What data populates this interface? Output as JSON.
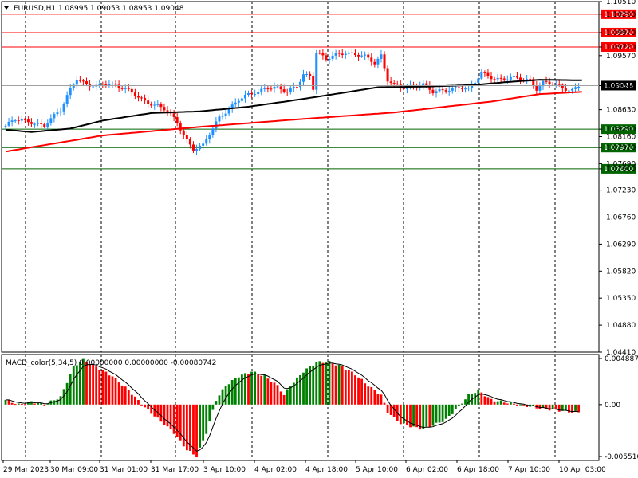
{
  "header": {
    "symbol_line": "EURUSD,H1  1.08995 1.09053 1.08953 1.09048",
    "indicator_line": "MACD_color(5,34,5) 0.00000000 0.00000000 -0.00080742"
  },
  "colors": {
    "bull": "#1e90ff",
    "bear": "#ff0000",
    "ma_slow": "#ff0000",
    "ma_fast": "#000000",
    "resistance": "#ff0000",
    "support": "#006400",
    "macd_up": "#008000",
    "macd_down": "#ff0000",
    "signal": "#000000",
    "current_label_bg": "#000000"
  },
  "chart_data": [
    {
      "type": "candlestick",
      "title": "EURUSD,H1",
      "ylim": [
        1.0441,
        1.1051
      ],
      "y_ticks": [
        "1.10510",
        "1.10290",
        "1.09970",
        "1.09720",
        "1.09570",
        "1.09048",
        "1.08630",
        "1.08290",
        "1.08160",
        "1.07970",
        "1.07690",
        "1.07600",
        "1.07230",
        "1.06760",
        "1.06290",
        "1.05820",
        "1.05350",
        "1.04880",
        "1.04410"
      ],
      "x_tick_labels": [
        "29 Mar 2023",
        "30 Mar 09:00",
        "31 Mar 01:00",
        "31 Mar 17:00",
        "3 Apr 10:00",
        "4 Apr 02:00",
        "4 Apr 18:00",
        "5 Apr 10:00",
        "6 Apr 02:00",
        "6 Apr 18:00",
        "7 Apr 10:00",
        "10 Apr 03:00"
      ],
      "current_price": 1.09048,
      "levels": [
        {
          "label": "1.10290",
          "value": 1.1029,
          "kind": "resistance"
        },
        {
          "label": "1.09970",
          "value": 1.0997,
          "kind": "resistance"
        },
        {
          "label": "1.09720",
          "value": 1.0972,
          "kind": "resistance"
        },
        {
          "label": "1.08290",
          "value": 1.0829,
          "kind": "support"
        },
        {
          "label": "1.07970",
          "value": 1.0797,
          "kind": "support"
        },
        {
          "label": "1.07600",
          "value": 1.076,
          "kind": "support"
        }
      ],
      "close_anchors": [
        [
          0,
          1.0835
        ],
        [
          3,
          1.0845
        ],
        [
          8,
          1.0842
        ],
        [
          12,
          1.0835
        ],
        [
          17,
          1.0862
        ],
        [
          20,
          1.09
        ],
        [
          22,
          1.0918
        ],
        [
          25,
          1.0905
        ],
        [
          28,
          1.0903
        ],
        [
          31,
          1.091
        ],
        [
          34,
          1.0906
        ],
        [
          37,
          1.0898
        ],
        [
          40,
          1.0888
        ],
        [
          43,
          1.0878
        ],
        [
          47,
          1.087
        ],
        [
          50,
          1.086
        ],
        [
          53,
          1.084
        ],
        [
          56,
          1.081
        ],
        [
          58,
          1.0795
        ],
        [
          61,
          1.08
        ],
        [
          63,
          1.082
        ],
        [
          66,
          1.085
        ],
        [
          69,
          1.0865
        ],
        [
          72,
          1.088
        ],
        [
          75,
          1.0888
        ],
        [
          78,
          1.0895
        ],
        [
          81,
          1.0903
        ],
        [
          84,
          1.09
        ],
        [
          87,
          1.0893
        ],
        [
          90,
          1.0905
        ],
        [
          92,
          1.0925
        ],
        [
          94,
          1.0922
        ],
        [
          95,
          1.09
        ],
        [
          96,
          1.0962
        ],
        [
          99,
          1.095
        ],
        [
          102,
          1.096
        ],
        [
          105,
          1.0963
        ],
        [
          108,
          1.0958
        ],
        [
          111,
          1.0955
        ],
        [
          114,
          1.0945
        ],
        [
          116,
          1.0958
        ],
        [
          118,
          1.0915
        ],
        [
          120,
          1.0905
        ],
        [
          123,
          1.09
        ],
        [
          126,
          1.0905
        ],
        [
          129,
          1.0908
        ],
        [
          132,
          1.0893
        ],
        [
          135,
          1.0895
        ],
        [
          138,
          1.09
        ],
        [
          141,
          1.0903
        ],
        [
          143,
          1.0898
        ],
        [
          145,
          1.091
        ],
        [
          147,
          1.0926
        ],
        [
          150,
          1.092
        ],
        [
          153,
          1.0916
        ],
        [
          156,
          1.0918
        ],
        [
          159,
          1.0916
        ],
        [
          162,
          1.0915
        ],
        [
          164,
          1.09
        ],
        [
          166,
          1.091
        ],
        [
          169,
          1.0908
        ],
        [
          172,
          1.09
        ],
        [
          175,
          1.0898
        ],
        [
          177,
          1.09048
        ]
      ],
      "ma_fast_anchors": [
        [
          0,
          1.0828
        ],
        [
          8,
          1.0824
        ],
        [
          20,
          1.083
        ],
        [
          30,
          1.0844
        ],
        [
          45,
          1.0857
        ],
        [
          60,
          1.086
        ],
        [
          75,
          1.0868
        ],
        [
          90,
          1.088
        ],
        [
          105,
          1.0893
        ],
        [
          115,
          1.0902
        ],
        [
          130,
          1.0903
        ],
        [
          145,
          1.0906
        ],
        [
          155,
          1.0911
        ],
        [
          165,
          1.0915
        ],
        [
          178,
          1.0914
        ]
      ],
      "ma_slow_anchors": [
        [
          0,
          1.079
        ],
        [
          30,
          1.0818
        ],
        [
          60,
          1.0833
        ],
        [
          90,
          1.0846
        ],
        [
          120,
          1.0858
        ],
        [
          150,
          1.0877
        ],
        [
          165,
          1.089
        ],
        [
          178,
          1.0894
        ]
      ]
    },
    {
      "type": "histogram",
      "title": "MACD_color(5,34,5)",
      "ylim": [
        -0.00551,
        0.004887
      ],
      "y_ticks": [
        "0.004887",
        "0.00",
        "-0.005510"
      ],
      "anchors": [
        [
          0,
          0.0005
        ],
        [
          4,
          0.0
        ],
        [
          8,
          0.0003
        ],
        [
          12,
          0.0
        ],
        [
          17,
          0.0008
        ],
        [
          21,
          0.004
        ],
        [
          24,
          0.0048
        ],
        [
          28,
          0.004
        ],
        [
          33,
          0.003
        ],
        [
          38,
          0.0015
        ],
        [
          43,
          -0.0003
        ],
        [
          48,
          -0.0018
        ],
        [
          52,
          -0.003
        ],
        [
          56,
          -0.0048
        ],
        [
          59,
          -0.0055
        ],
        [
          62,
          -0.003
        ],
        [
          65,
          0.0005
        ],
        [
          68,
          0.002
        ],
        [
          72,
          0.003
        ],
        [
          76,
          0.0035
        ],
        [
          80,
          0.003
        ],
        [
          84,
          0.002
        ],
        [
          86,
          0.001
        ],
        [
          88,
          0.002
        ],
        [
          92,
          0.0035
        ],
        [
          96,
          0.0045
        ],
        [
          100,
          0.0045
        ],
        [
          104,
          0.004
        ],
        [
          108,
          0.0032
        ],
        [
          112,
          0.002
        ],
        [
          116,
          0.001
        ],
        [
          118,
          -0.0008
        ],
        [
          122,
          -0.002
        ],
        [
          126,
          -0.0024
        ],
        [
          129,
          -0.0026
        ],
        [
          132,
          -0.0022
        ],
        [
          136,
          -0.0016
        ],
        [
          140,
          -0.0002
        ],
        [
          143,
          0.001
        ],
        [
          146,
          0.0015
        ],
        [
          150,
          0.0005
        ],
        [
          155,
          0.0002
        ],
        [
          160,
          -0.0001
        ],
        [
          165,
          -0.0004
        ],
        [
          170,
          -0.0006
        ],
        [
          175,
          -0.0008
        ],
        [
          177,
          -0.0008
        ]
      ]
    }
  ]
}
